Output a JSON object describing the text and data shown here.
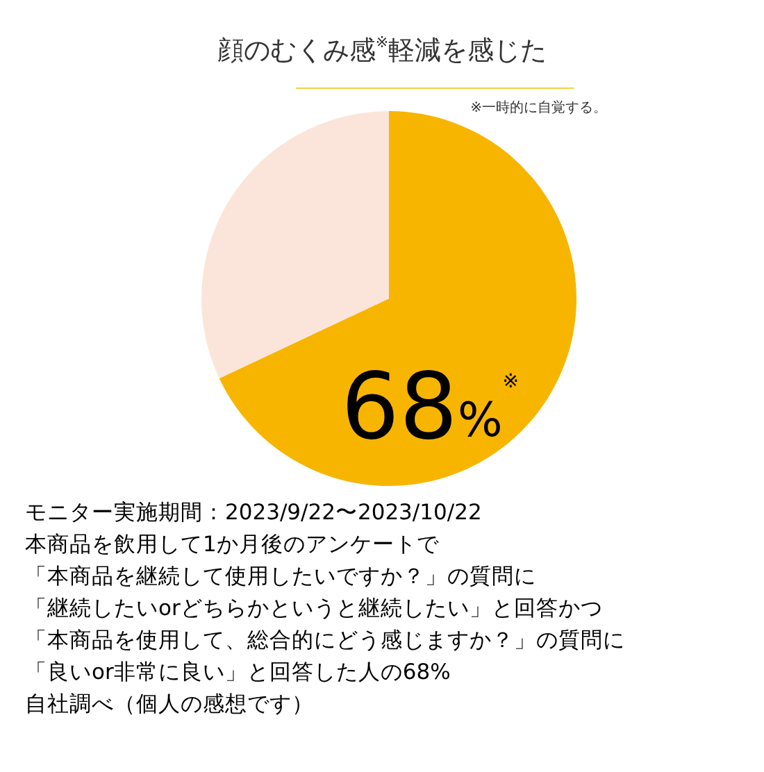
{
  "chart_data": {
    "type": "pie",
    "title": "顔のむくみ感$^{※}$軽減を感じた",
    "subtitle": "※一時的に自覚する。",
    "categories": [
      null,
      null
    ],
    "values": [
      68,
      32
    ],
    "colors": [
      "#f7b500",
      "#fbe5da"
    ],
    "value_labels": [
      "68%$^{※}$",
      null
    ],
    "annotations": [
      "モニター実施期間：2023/9/22〜2023/10/22",
      "本商品を飲用して1か月後のアンケートで",
      "「本商品を継続して使用したいですか？」の質問に",
      "「継続したいorどちらかというと継続したい」と回答かつ",
      "「本商品を使用して、総合的にどう感じますか？」の質問に",
      "「良いor非常に良い」と回答した人の68%",
      "自社調べ（個人の感想です）"
    ]
  }
}
